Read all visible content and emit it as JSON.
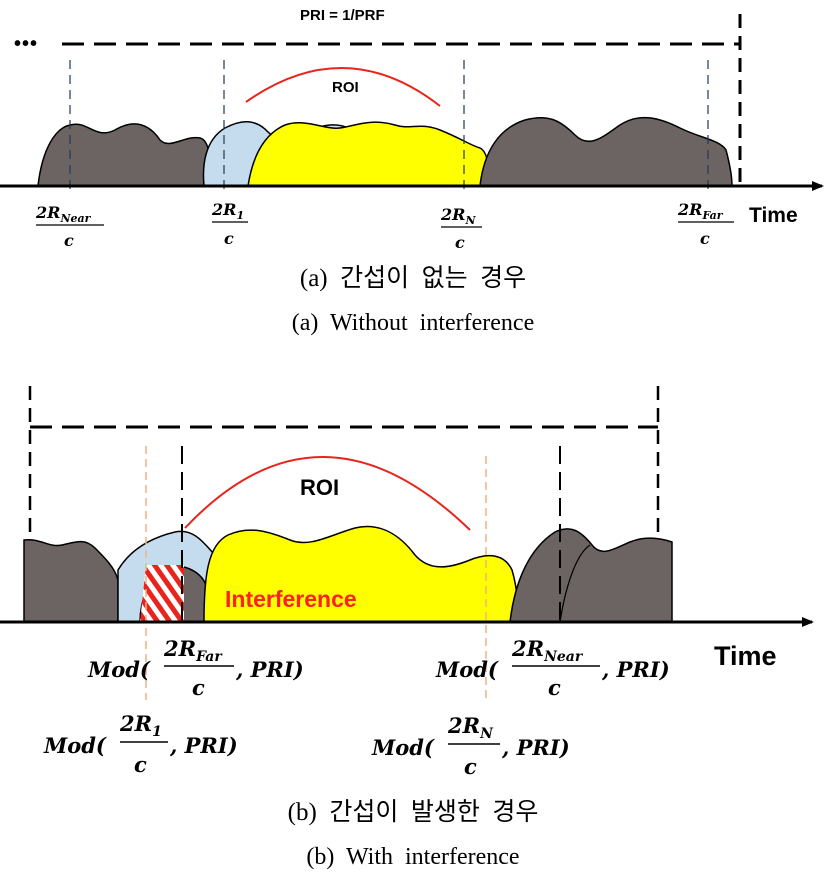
{
  "panel_a": {
    "pri_label": "PRI = 1/PRF",
    "ellipsis": "•••",
    "roi_label": "ROI",
    "time_label": "Time",
    "markers": [
      {
        "num": "2R",
        "sub": "Near",
        "den": "c"
      },
      {
        "num": "2R",
        "sub": "1",
        "den": "c"
      },
      {
        "num": "2R",
        "sub": "N",
        "den": "c"
      },
      {
        "num": "2R",
        "sub": "Far",
        "den": "c"
      }
    ],
    "caption_ko": "(a)  간섭이  없는  경우",
    "caption_en": "(a)  Without  interference"
  },
  "panel_b": {
    "roi_label": "ROI",
    "interference_label": "Interference",
    "time_label": "Time",
    "mod_labels": [
      {
        "prefix": "Mod(",
        "num": "2R",
        "sub": "Far",
        "den": "c",
        "suffix": ", PRI)"
      },
      {
        "prefix": "Mod(",
        "num": "2R",
        "sub": "Near",
        "den": "c",
        "suffix": ", PRI)"
      },
      {
        "prefix": "Mod(",
        "num": "2R",
        "sub": "1",
        "den": "c",
        "suffix": ", PRI)"
      },
      {
        "prefix": "Mod(",
        "num": "2R",
        "sub": "N",
        "den": "c",
        "suffix": ", PRI)"
      }
    ],
    "caption_ko": "(b)  간섭이  발생한  경우",
    "caption_en": "(b)  With  interference"
  },
  "colors": {
    "clutter_gray": "#6b6463",
    "light_blue": "#c5dcef",
    "yellow": "#ffff00",
    "roi_red": "#e8241c",
    "interference_red": "#ff2020",
    "dash_blue": "#1f3a5a",
    "dash_orange": "#f4b183"
  }
}
